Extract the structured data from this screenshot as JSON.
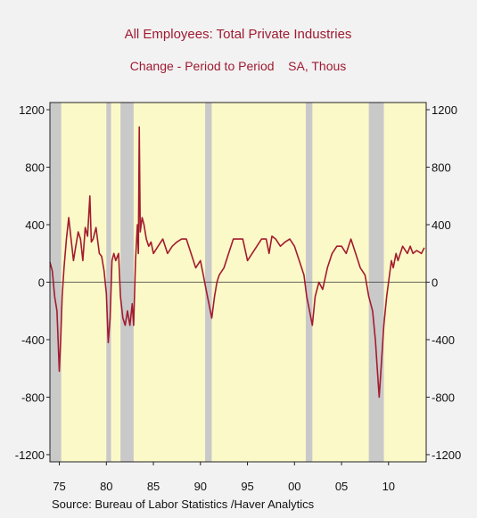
{
  "chart_data": {
    "type": "line",
    "title": "All Employees: Total Private Industries",
    "subtitle": "Change - Period to Period    SA, Thous",
    "source": "Source:  Bureau of Labor Statistics /Haver Analytics",
    "xlim": [
      1974.0,
      2014.0
    ],
    "ylim": [
      -1250,
      1250
    ],
    "y_ticks": [
      1200,
      800,
      400,
      0,
      -400,
      -800,
      -1200
    ],
    "y_tick_labels_left": [
      "1200",
      "800",
      "400",
      "0",
      "-400",
      "-800",
      "-1200"
    ],
    "y_tick_labels_right": [
      "1200",
      "800",
      "400",
      "0",
      "-400",
      "-800",
      "-1200"
    ],
    "x_ticks": [
      1975,
      1980,
      1985,
      1990,
      1995,
      2000,
      2005,
      2010
    ],
    "x_tick_labels": [
      "75",
      "80",
      "85",
      "90",
      "95",
      "00",
      "05",
      "10"
    ],
    "recessions": [
      [
        1974.0,
        1975.2
      ],
      [
        1980.0,
        1980.5
      ],
      [
        1981.5,
        1982.9
      ],
      [
        1990.5,
        1991.2
      ],
      [
        2001.2,
        2001.9
      ],
      [
        2007.9,
        2009.5
      ]
    ],
    "colors": {
      "line": "#a31b2e",
      "plot_background": "#fbf9c8",
      "recession": "#c9c9c9",
      "title": "#9e1b32",
      "page_background": "#f2f2f2"
    },
    "series": [
      {
        "x": [
          1974.0,
          1974.25,
          1974.5,
          1974.75,
          1975.0,
          1975.15,
          1975.3,
          1975.5,
          1975.75,
          1976.0,
          1976.25,
          1976.5,
          1976.75,
          1977.0,
          1977.25,
          1977.5,
          1977.75,
          1978.0,
          1978.25,
          1978.4,
          1978.6,
          1978.9,
          1979.25,
          1979.5,
          1979.75,
          1980.0,
          1980.2,
          1980.4,
          1980.6,
          1980.8,
          1981.0,
          1981.3,
          1981.5,
          1981.75,
          1982.0,
          1982.25,
          1982.5,
          1982.75,
          1982.9,
          1983.1,
          1983.3,
          1983.4,
          1983.5,
          1983.6,
          1983.8,
          1984.0,
          1984.25,
          1984.5,
          1984.75,
          1985.0,
          1985.5,
          1986.0,
          1986.5,
          1987.0,
          1987.5,
          1988.0,
          1988.5,
          1989.0,
          1989.5,
          1990.0,
          1990.3,
          1990.6,
          1990.9,
          1991.2,
          1991.5,
          1991.75,
          1992.0,
          1992.5,
          1993.0,
          1993.5,
          1994.0,
          1994.5,
          1995.0,
          1995.5,
          1996.0,
          1996.5,
          1997.0,
          1997.3,
          1997.6,
          1998.0,
          1998.5,
          1999.0,
          1999.5,
          2000.0,
          2000.5,
          2001.0,
          2001.3,
          2001.6,
          2001.9,
          2002.2,
          2002.6,
          2003.0,
          2003.5,
          2004.0,
          2004.5,
          2005.0,
          2005.5,
          2006.0,
          2006.5,
          2007.0,
          2007.5,
          2007.9,
          2008.3,
          2008.6,
          2008.9,
          2009.0,
          2009.2,
          2009.5,
          2009.8,
          2010.0,
          2010.3,
          2010.5,
          2010.8,
          2011.0,
          2011.5,
          2012.0,
          2012.3,
          2012.6,
          2013.0,
          2013.5,
          2013.8
        ],
        "values": [
          140,
          80,
          -100,
          -200,
          -620,
          -400,
          -100,
          100,
          300,
          450,
          300,
          150,
          250,
          350,
          300,
          150,
          380,
          320,
          600,
          280,
          300,
          380,
          200,
          180,
          80,
          -80,
          -420,
          -250,
          150,
          200,
          150,
          200,
          -100,
          -250,
          -300,
          -200,
          -300,
          -150,
          -300,
          150,
          400,
          200,
          1080,
          350,
          450,
          400,
          300,
          250,
          280,
          200,
          250,
          300,
          200,
          250,
          280,
          300,
          300,
          200,
          100,
          150,
          50,
          -50,
          -150,
          -250,
          -100,
          0,
          50,
          100,
          200,
          300,
          300,
          300,
          150,
          200,
          250,
          300,
          300,
          200,
          320,
          300,
          250,
          280,
          300,
          250,
          150,
          50,
          -100,
          -200,
          -300,
          -100,
          0,
          -50,
          100,
          200,
          250,
          250,
          200,
          300,
          200,
          100,
          50,
          -100,
          -200,
          -400,
          -700,
          -800,
          -600,
          -300,
          -100,
          0,
          150,
          100,
          200,
          150,
          250,
          200,
          250,
          200,
          220,
          200,
          240
        ]
      }
    ]
  }
}
